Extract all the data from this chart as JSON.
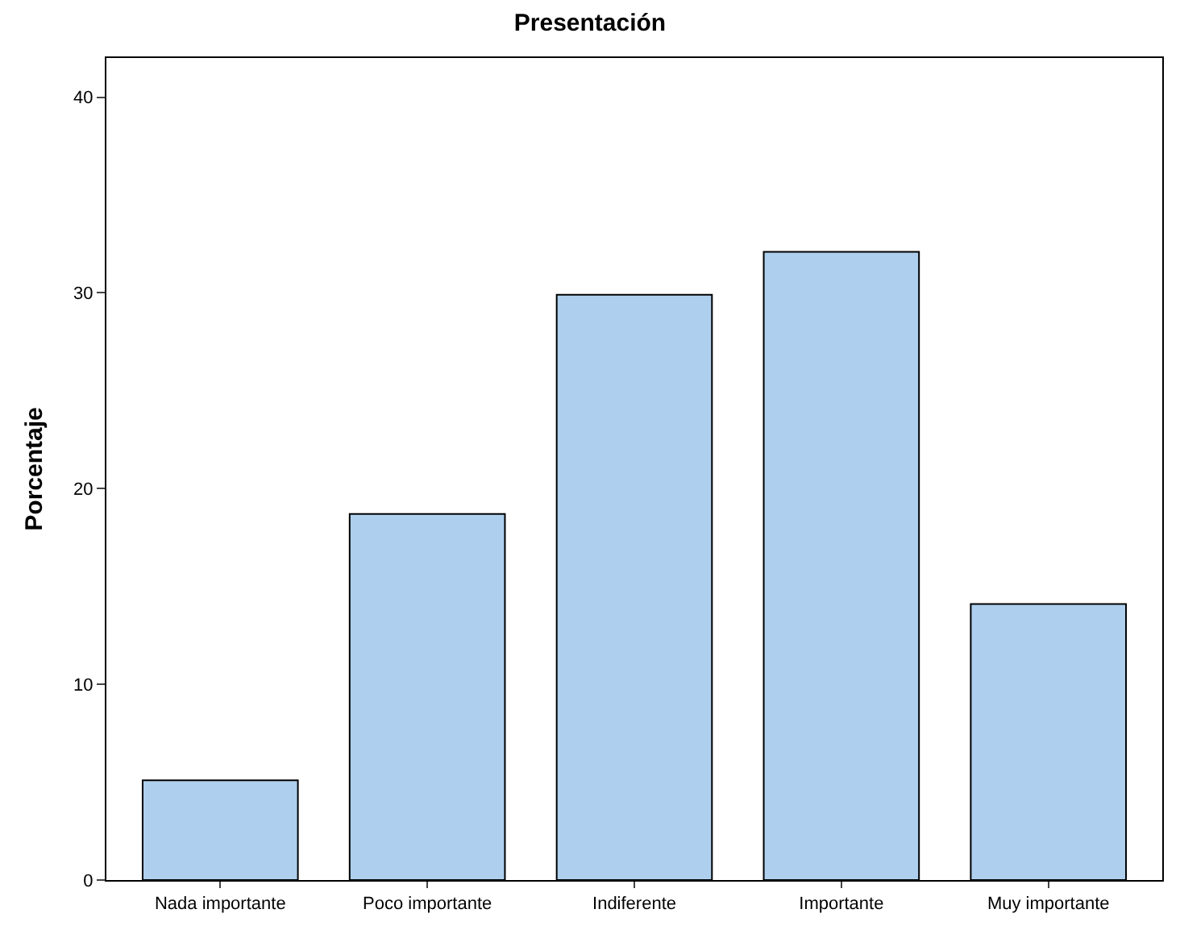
{
  "chart_data": {
    "type": "bar",
    "title": "Presentación",
    "ylabel": "Porcentaje",
    "categories": [
      "Nada importante",
      "Poco importante",
      "Indiferente",
      "Importante",
      "Muy importante"
    ],
    "values": [
      5.1,
      18.7,
      29.9,
      32.1,
      14.1
    ],
    "color": "#aed0ee",
    "ylim": [
      0,
      42
    ],
    "yticks": [
      0,
      10,
      20,
      30,
      40
    ]
  }
}
